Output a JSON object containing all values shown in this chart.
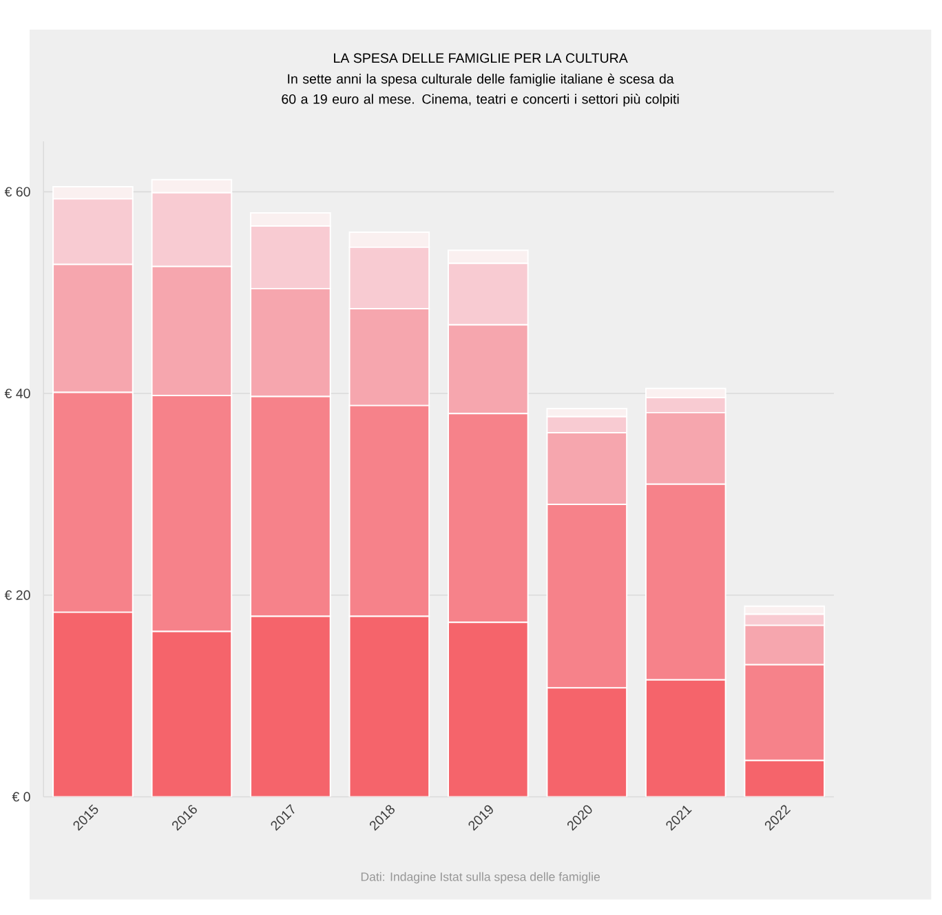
{
  "chart_data": {
    "type": "bar",
    "stacked": true,
    "title": "LA SPESA DELLE FAMIGLIE PER LA CULTURA",
    "subtitle": "In sette anni la spesa culturale delle famiglie italiane è scesa da 60 a 19 euro al mese. Cinema, teatri e concerti i settori più colpiti",
    "annotations": [
      "Dati: Indagine Istat sulla spesa delle famiglie"
    ],
    "categories": [
      "2015",
      "2016",
      "2017",
      "2018",
      "2019",
      "2020",
      "2021",
      "2022"
    ],
    "series": [
      {
        "color": "#f5646b",
        "values": [
          18.3,
          16.4,
          17.9,
          17.9,
          17.3,
          10.8,
          11.6,
          3.6
        ]
      },
      {
        "color": "#f6828a",
        "values": [
          21.8,
          23.4,
          21.8,
          20.9,
          20.7,
          18.2,
          19.4,
          9.5
        ]
      },
      {
        "color": "#f6a6ae",
        "values": [
          12.7,
          12.8,
          10.7,
          9.6,
          8.8,
          7.1,
          7.1,
          3.9
        ]
      },
      {
        "color": "#f8cbd2",
        "values": [
          6.5,
          7.3,
          6.2,
          6.1,
          6.1,
          1.6,
          1.5,
          1.1
        ]
      },
      {
        "color": "#faf0f0",
        "values": [
          1.2,
          1.3,
          1.3,
          1.5,
          1.3,
          0.8,
          0.9,
          0.8
        ]
      }
    ],
    "ylim": [
      0,
      65
    ],
    "yticks": [
      {
        "value": 0,
        "label": "€ 0"
      },
      {
        "value": 20,
        "label": "€ 20"
      },
      {
        "value": 40,
        "label": "€ 40"
      },
      {
        "value": 60,
        "label": "€ 60"
      }
    ],
    "grid": "y"
  }
}
